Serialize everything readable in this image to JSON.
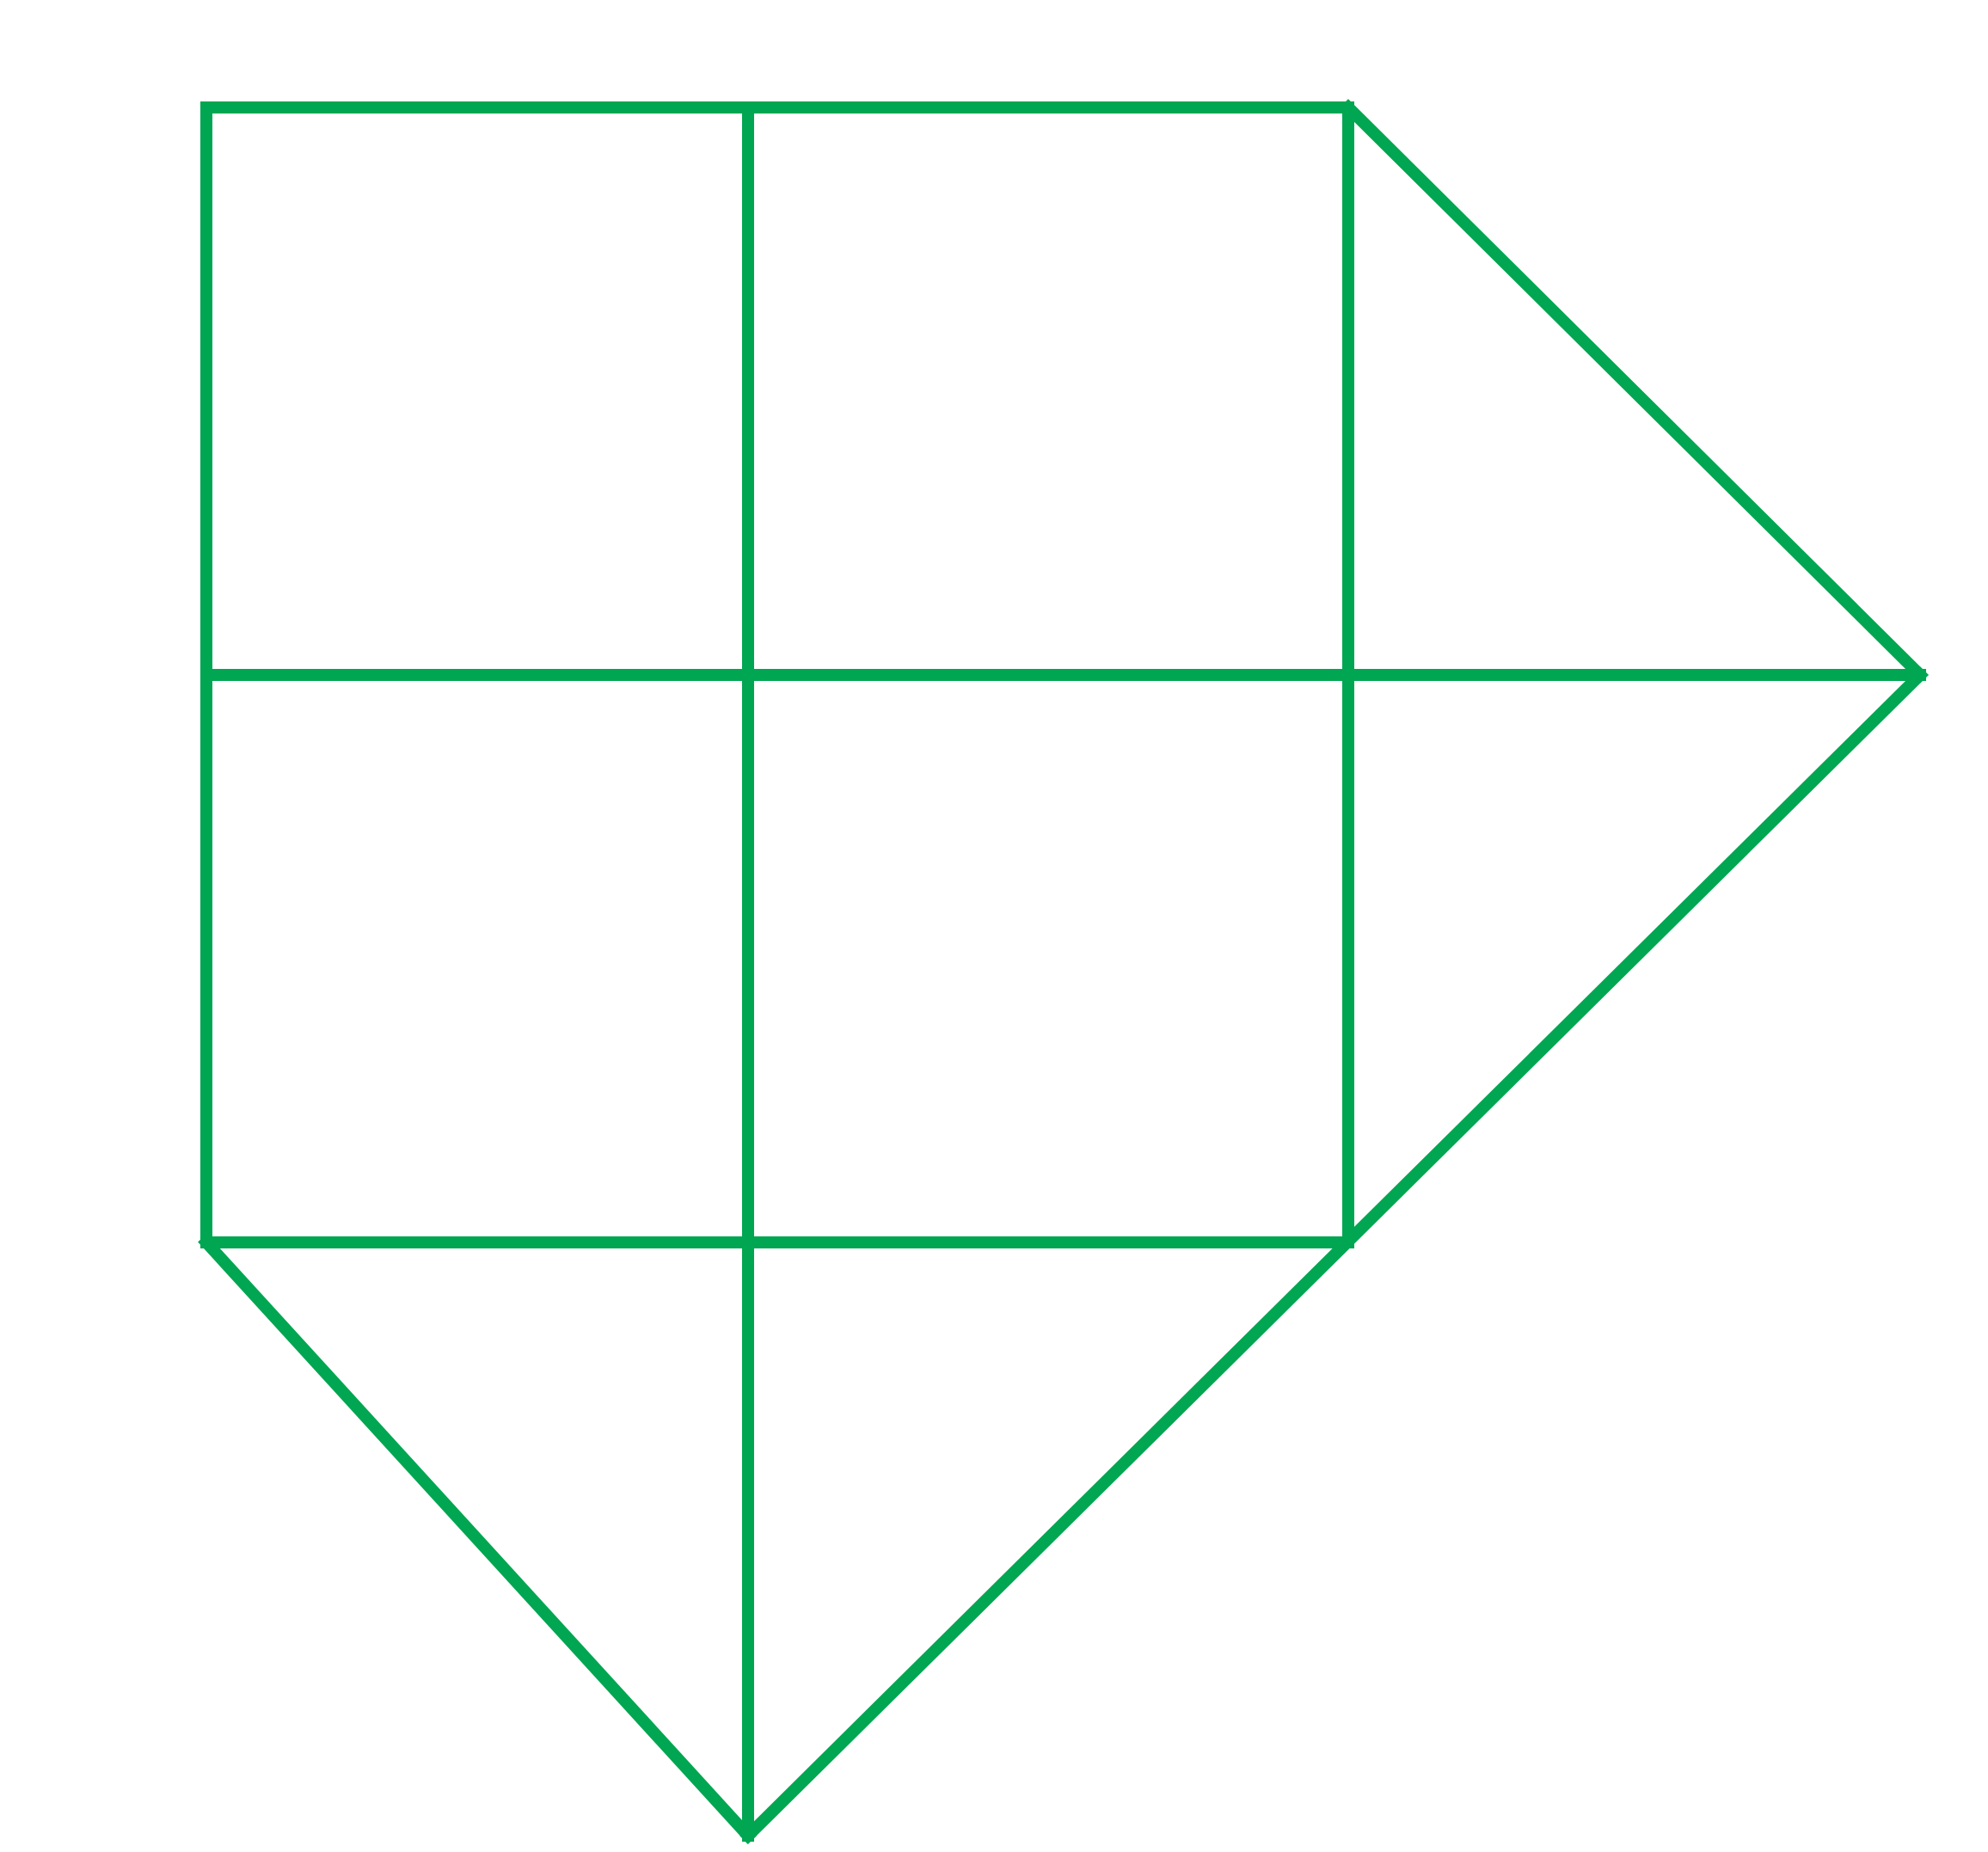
{
  "diagram": {
    "type": "line-figure",
    "stroke_color": "#00A651",
    "background_color": "#FFFFFF",
    "segments": [
      {
        "name": "top-edge-left"
      },
      {
        "name": "top-edge-right"
      },
      {
        "name": "left-edge-upper"
      },
      {
        "name": "left-edge-lower"
      },
      {
        "name": "middle-vertical-upper"
      },
      {
        "name": "middle-vertical-middle"
      },
      {
        "name": "middle-vertical-lower"
      },
      {
        "name": "right-vertical-upper"
      },
      {
        "name": "right-vertical-lower"
      },
      {
        "name": "horizontal-middle"
      },
      {
        "name": "horizontal-lower"
      },
      {
        "name": "diagonal-top-right"
      },
      {
        "name": "diagonal-right-to-bottom"
      },
      {
        "name": "diagonal-left-to-bottom"
      }
    ]
  }
}
